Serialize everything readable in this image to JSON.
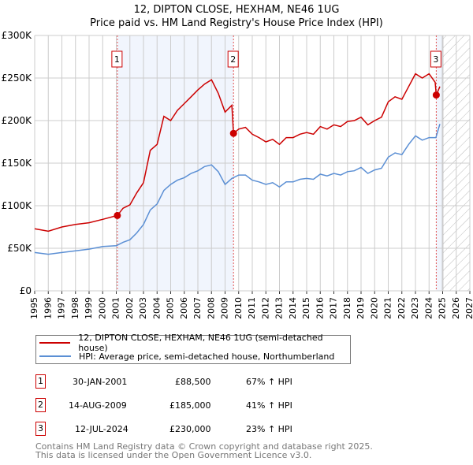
{
  "title_line1": "12, DIPTON CLOSE, HEXHAM, NE46 1UG",
  "title_line2": "Price paid vs. HM Land Registry's House Price Index (HPI)",
  "legend": [
    {
      "label": "12, DIPTON CLOSE, HEXHAM, NE46 1UG (semi-detached house)",
      "color": "#cc0000"
    },
    {
      "label": "HPI: Average price, semi-detached house, Northumberland",
      "color": "#5b8fd4"
    }
  ],
  "sales": [
    {
      "num": "1",
      "date": "30-JAN-2001",
      "price": "£88,500",
      "hpi": "67% ↑ HPI"
    },
    {
      "num": "2",
      "date": "14-AUG-2009",
      "price": "£185,000",
      "hpi": "41% ↑ HPI"
    },
    {
      "num": "3",
      "date": "12-JUL-2024",
      "price": "£230,000",
      "hpi": "23% ↑ HPI"
    }
  ],
  "footer_line1": "Contains HM Land Registry data © Crown copyright and database right 2025.",
  "footer_line2": "This data is licensed under the Open Government Licence v3.0.",
  "chart_data": {
    "type": "line",
    "title": "12, DIPTON CLOSE, HEXHAM, NE46 1UG — Price paid vs. HM Land Registry's House Price Index (HPI)",
    "xlim": [
      1995,
      2027
    ],
    "ylim": [
      0,
      300000
    ],
    "x_ticks": [
      "1995",
      "1996",
      "1997",
      "1998",
      "1999",
      "2000",
      "2001",
      "2002",
      "2003",
      "2004",
      "2005",
      "2006",
      "2007",
      "2008",
      "2009",
      "2010",
      "2011",
      "2012",
      "2013",
      "2014",
      "2015",
      "2016",
      "2017",
      "2018",
      "2019",
      "2020",
      "2021",
      "2022",
      "2023",
      "2024",
      "2025",
      "2026",
      "2027"
    ],
    "y_ticks": [
      {
        "v": 0,
        "label": "£0"
      },
      {
        "v": 50000,
        "label": "£50K"
      },
      {
        "v": 100000,
        "label": "£100K"
      },
      {
        "v": 150000,
        "label": "£150K"
      },
      {
        "v": 200000,
        "label": "£200K"
      },
      {
        "v": 250000,
        "label": "£250K"
      },
      {
        "v": 300000,
        "label": "£300K"
      }
    ],
    "grid": true,
    "shaded_periods": [
      [
        2001.08,
        2009.62
      ],
      [
        2024.53,
        2025.0
      ]
    ],
    "forecast_hatch_from": 2025.0,
    "sale_markers": [
      {
        "label": "1",
        "x": 2001.08,
        "y": 88500
      },
      {
        "label": "2",
        "x": 2009.62,
        "y": 185000
      },
      {
        "label": "3",
        "x": 2024.53,
        "y": 230000
      }
    ],
    "series": [
      {
        "name": "12, DIPTON CLOSE, HEXHAM, NE46 1UG (semi-detached house)",
        "color": "#cc0000",
        "x": [
          1995,
          1996,
          1997,
          1998,
          1999,
          2000,
          2001.08,
          2001.5,
          2002,
          2002.5,
          2003,
          2003.5,
          2004,
          2004.5,
          2005,
          2005.5,
          2006,
          2006.5,
          2007,
          2007.5,
          2008,
          2008.5,
          2009,
          2009.5,
          2009.62,
          2010,
          2010.5,
          2011,
          2011.5,
          2012,
          2012.5,
          2013,
          2013.5,
          2014,
          2014.5,
          2015,
          2015.5,
          2016,
          2016.5,
          2017,
          2017.5,
          2018,
          2018.5,
          2019,
          2019.5,
          2020,
          2020.5,
          2021,
          2021.5,
          2022,
          2022.5,
          2023,
          2023.5,
          2024,
          2024.45,
          2024.53,
          2024.8
        ],
        "y": [
          73000,
          70000,
          75000,
          78000,
          80000,
          84000,
          88500,
          97000,
          101000,
          115000,
          127000,
          165000,
          172000,
          205000,
          200000,
          212000,
          220000,
          228000,
          236000,
          243000,
          248000,
          232000,
          210000,
          218000,
          185000,
          190000,
          192000,
          184000,
          180000,
          175000,
          178000,
          172000,
          180000,
          180000,
          184000,
          186000,
          184000,
          193000,
          190000,
          195000,
          193000,
          199000,
          200000,
          204000,
          195000,
          200000,
          204000,
          222000,
          228000,
          225000,
          240000,
          255000,
          250000,
          255000,
          245000,
          230000,
          240000
        ]
      },
      {
        "name": "HPI: Average price, semi-detached house, Northumberland",
        "color": "#5b8fd4",
        "x": [
          1995,
          1996,
          1997,
          1998,
          1999,
          2000,
          2001,
          2001.5,
          2002,
          2002.5,
          2003,
          2003.5,
          2004,
          2004.5,
          2005,
          2005.5,
          2006,
          2006.5,
          2007,
          2007.5,
          2008,
          2008.5,
          2009,
          2009.5,
          2010,
          2010.5,
          2011,
          2011.5,
          2012,
          2012.5,
          2013,
          2013.5,
          2014,
          2014.5,
          2015,
          2015.5,
          2016,
          2016.5,
          2017,
          2017.5,
          2018,
          2018.5,
          2019,
          2019.5,
          2020,
          2020.5,
          2021,
          2021.5,
          2022,
          2022.5,
          2023,
          2023.5,
          2024,
          2024.5,
          2024.8
        ],
        "y": [
          45000,
          43000,
          45000,
          47000,
          49000,
          52000,
          53000,
          57000,
          60000,
          68000,
          78000,
          95000,
          102000,
          118000,
          125000,
          130000,
          133000,
          138000,
          141000,
          146000,
          148000,
          140000,
          125000,
          132000,
          136000,
          136000,
          130000,
          128000,
          125000,
          127000,
          122000,
          128000,
          128000,
          131000,
          132000,
          131000,
          137000,
          135000,
          138000,
          136000,
          140000,
          141000,
          145000,
          138000,
          142000,
          144000,
          157000,
          162000,
          160000,
          172000,
          182000,
          177000,
          180000,
          180000,
          196000
        ]
      }
    ]
  }
}
